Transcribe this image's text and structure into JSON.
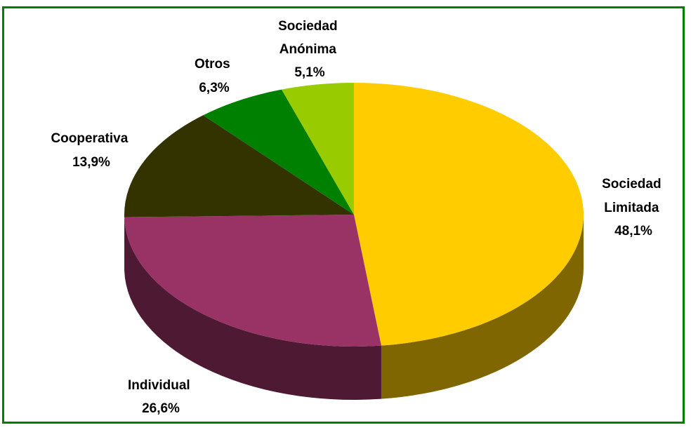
{
  "chart_data": {
    "type": "pie",
    "three_d": true,
    "legend": "none",
    "slices": [
      {
        "label_lines": [
          "Sociedad",
          "Limitada"
        ],
        "value_label": "48,1%",
        "value": 48.1,
        "color": "#FFCC00",
        "side_color": "#806600"
      },
      {
        "label_lines": [
          "Individual"
        ],
        "value_label": "26,6%",
        "value": 26.6,
        "color": "#993366",
        "side_color": "#4D1933"
      },
      {
        "label_lines": [
          "Cooperativa"
        ],
        "value_label": "13,9%",
        "value": 13.9,
        "color": "#333300",
        "side_color": "#1A1A00"
      },
      {
        "label_lines": [
          "Otros"
        ],
        "value_label": "6,3%",
        "value": 6.3,
        "color": "#008000",
        "side_color": "#004000"
      },
      {
        "label_lines": [
          "Sociedad",
          "Anónima"
        ],
        "value_label": "5,1%",
        "value": 5.1,
        "color": "#99CC00",
        "side_color": "#4D6600"
      }
    ]
  }
}
